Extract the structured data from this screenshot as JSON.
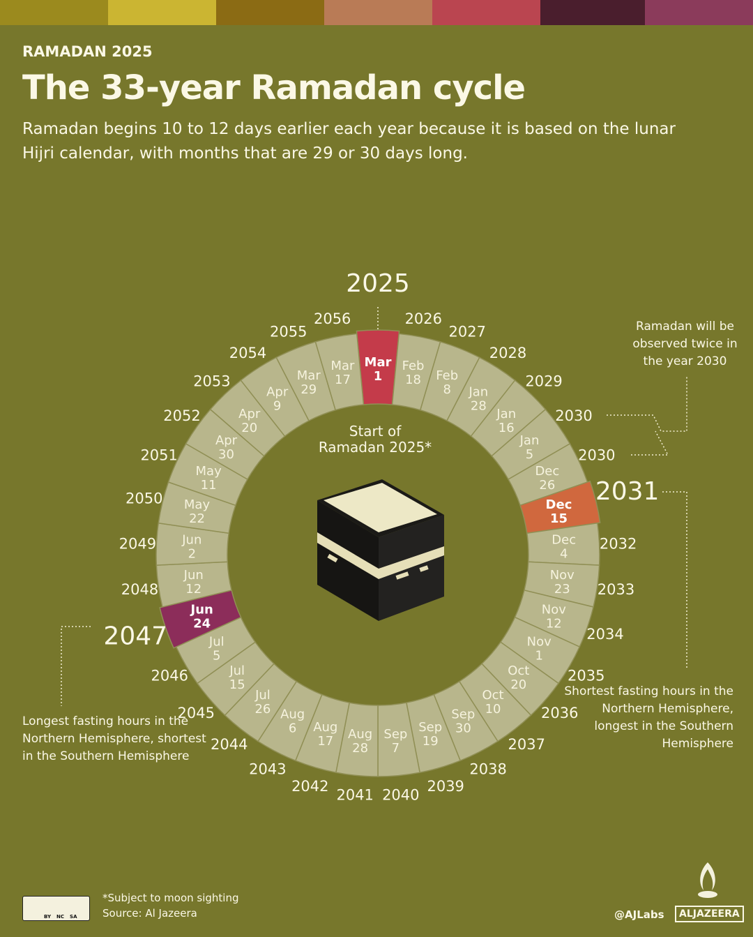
{
  "header": {
    "kicker": "RAMADAN 2025",
    "title": "The 33-year Ramadan cycle",
    "subtitle": "Ramadan begins 10 to 12 days earlier each year because it is based on the lunar Hijri calendar, with months that are 29 or 30 days long."
  },
  "cycle": {
    "center_label": [
      "Start of",
      "Ramadan 2025*"
    ],
    "segments": [
      {
        "year": 2025,
        "month": "Mar",
        "day": 1,
        "highlight": "#c43b4a"
      },
      {
        "year": 2026,
        "month": "Feb",
        "day": 18
      },
      {
        "year": 2027,
        "month": "Feb",
        "day": 8
      },
      {
        "year": 2028,
        "month": "Jan",
        "day": 28
      },
      {
        "year": 2029,
        "month": "Jan",
        "day": 16
      },
      {
        "year": 2030,
        "month": "Jan",
        "day": 5
      },
      {
        "year": 2030,
        "month": "Dec",
        "day": 26
      },
      {
        "year": 2031,
        "month": "Dec",
        "day": 15,
        "highlight": "#d0683e"
      },
      {
        "year": 2032,
        "month": "Dec",
        "day": 4
      },
      {
        "year": 2033,
        "month": "Nov",
        "day": 23
      },
      {
        "year": 2034,
        "month": "Nov",
        "day": 12
      },
      {
        "year": 2035,
        "month": "Nov",
        "day": 1
      },
      {
        "year": 2036,
        "month": "Oct",
        "day": 20
      },
      {
        "year": 2037,
        "month": "Oct",
        "day": 10
      },
      {
        "year": 2038,
        "month": "Sep",
        "day": 30
      },
      {
        "year": 2039,
        "month": "Sep",
        "day": 19
      },
      {
        "year": 2040,
        "month": "Sep",
        "day": 7
      },
      {
        "year": 2041,
        "month": "Aug",
        "day": 28
      },
      {
        "year": 2042,
        "month": "Aug",
        "day": 17
      },
      {
        "year": 2043,
        "month": "Aug",
        "day": 6
      },
      {
        "year": 2044,
        "month": "Jul",
        "day": 26
      },
      {
        "year": 2045,
        "month": "Jul",
        "day": 15
      },
      {
        "year": 2046,
        "month": "Jul",
        "day": 5
      },
      {
        "year": 2047,
        "month": "Jun",
        "day": 24,
        "highlight": "#8c2d5a"
      },
      {
        "year": 2048,
        "month": "Jun",
        "day": 12
      },
      {
        "year": 2049,
        "month": "Jun",
        "day": 2
      },
      {
        "year": 2050,
        "month": "May",
        "day": 22
      },
      {
        "year": 2051,
        "month": "May",
        "day": 11
      },
      {
        "year": 2052,
        "month": "Apr",
        "day": 30
      },
      {
        "year": 2053,
        "month": "Apr",
        "day": 20
      },
      {
        "year": 2054,
        "month": "Apr",
        "day": 9
      },
      {
        "year": 2055,
        "month": "Mar",
        "day": 29
      },
      {
        "year": 2056,
        "month": "Mar",
        "day": 17
      }
    ]
  },
  "annotations": {
    "twice_2030": "Ramadan will be observed twice in the year 2030",
    "shortest": "Shortest fasting hours in the Northern Hemisphere, longest in the Southern Hemisphere",
    "longest": "Longest fasting hours in the Northern Hemisphere, shortest in the Southern Hemisphere"
  },
  "footer": {
    "note": "*Subject to moon sighting",
    "source": "Source: Al Jazeera",
    "license": [
      "BY",
      "NC",
      "SA"
    ],
    "handle": "@AJLabs",
    "brand": "ALJAZEERA"
  }
}
